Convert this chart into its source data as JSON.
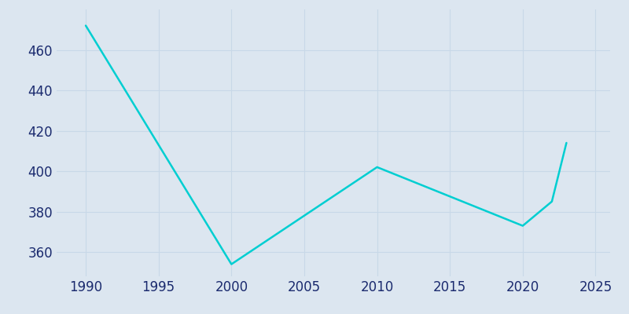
{
  "years": [
    1990,
    2000,
    2010,
    2020,
    2022,
    2023
  ],
  "population": [
    472,
    354,
    402,
    373,
    385,
    414
  ],
  "line_color": "#00CED1",
  "bg_color": "#dce6f0",
  "grid_color": "#c8d8e8",
  "text_color": "#1a2a6e",
  "xlim": [
    1988,
    2026
  ],
  "ylim": [
    348,
    480
  ],
  "xticks": [
    1990,
    1995,
    2000,
    2005,
    2010,
    2015,
    2020,
    2025
  ],
  "yticks": [
    360,
    380,
    400,
    420,
    440,
    460
  ],
  "linewidth": 1.8,
  "figsize": [
    8.0,
    4.0
  ],
  "dpi": 100,
  "tick_fontsize": 12
}
